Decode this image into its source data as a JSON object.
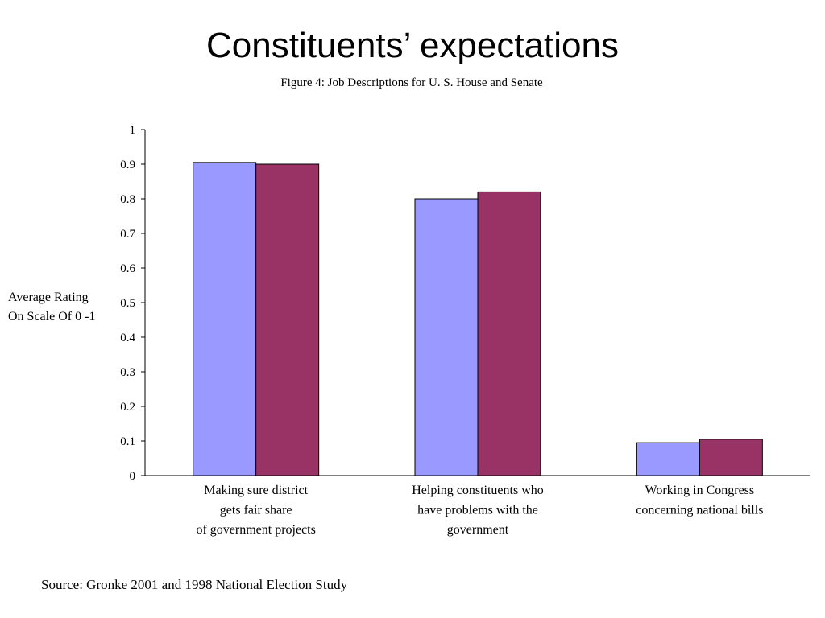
{
  "slide": {
    "title": "Constituents’ expectations",
    "source": "Source: Gronke 2001 and 1998 National Election Study"
  },
  "chart_data": {
    "type": "bar",
    "title": "Figure 4:  Job Descriptions for U. S. House and Senate",
    "ylabel_lines": [
      "Average Rating",
      "On Scale Of 0 -1"
    ],
    "xlabel": "",
    "ylim": [
      0,
      1
    ],
    "yticks": [
      "0",
      "0.1",
      "0.2",
      "0.3",
      "0.4",
      "0.5",
      "0.6",
      "0.7",
      "0.8",
      "0.9",
      "1"
    ],
    "categories": [
      [
        "Making sure district",
        "gets fair share",
        "of government projects"
      ],
      [
        "Helping constituents who",
        "have problems with the",
        "government"
      ],
      [
        "Working in Congress",
        "concerning national bills"
      ]
    ],
    "series": [
      {
        "values": [
          0.905,
          0.8,
          0.095
        ],
        "color": "#9999ff"
      },
      {
        "values": [
          0.9,
          0.82,
          0.105
        ],
        "color": "#993366"
      }
    ],
    "grid": false,
    "legend": "none"
  }
}
